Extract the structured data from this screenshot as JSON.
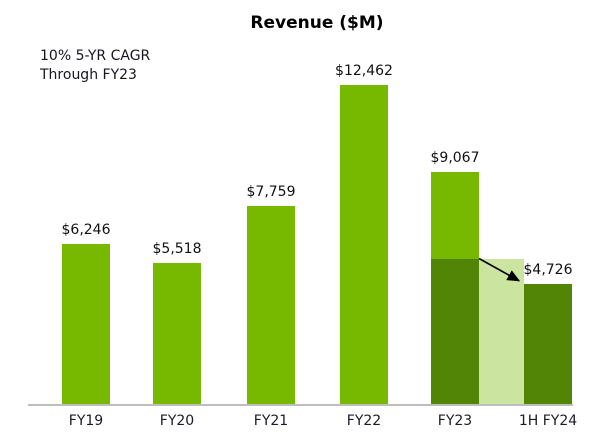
{
  "chart_data": {
    "type": "bar",
    "title": "Revenue ($M)",
    "annotation_lines": [
      "10% 5-YR CAGR",
      "Through FY23"
    ],
    "categories": [
      "FY19",
      "FY20",
      "FY21",
      "FY22",
      "FY23",
      "1H FY24"
    ],
    "values": [
      6246,
      5518,
      7759,
      12462,
      9067,
      4726
    ],
    "value_labels": [
      "$6,246",
      "$5,518",
      "$7,759",
      "$12,462",
      "$9,067",
      "$4,726"
    ],
    "xlabel": "",
    "ylabel": "",
    "ylim": [
      0,
      13000
    ],
    "grid": false,
    "legend": "none",
    "bars": [
      {
        "category": "FY19",
        "value": 6246,
        "label": "$6,246",
        "color": "primary"
      },
      {
        "category": "FY20",
        "value": 5518,
        "label": "$5,518",
        "color": "primary"
      },
      {
        "category": "FY21",
        "value": 7759,
        "label": "$7,759",
        "color": "primary"
      },
      {
        "category": "FY22",
        "value": 12462,
        "label": "$12,462",
        "color": "primary"
      },
      {
        "category": "FY23",
        "value": 9067,
        "label": "$9,067",
        "color": "primary",
        "overlay": {
          "value": 5700,
          "color": "dark",
          "estimated": true
        }
      },
      {
        "category": "1H FY24",
        "value": 4726,
        "label": "$4,726",
        "color": "dark"
      }
    ],
    "connector_band": {
      "between": [
        "FY23",
        "1H FY24"
      ],
      "top_value": 5700,
      "color": "pale",
      "estimated": true
    },
    "arrow": {
      "from_bar": "FY23",
      "to_bar": "1H FY24",
      "color": "#000000"
    },
    "colors": {
      "primary": "#76B900",
      "dark": "#528506",
      "pale": "#CBE5A0",
      "axis_line": "#BDBDBD",
      "title_text": "#000000",
      "value_text": "#111111",
      "category_text": "#1B1B26"
    }
  }
}
